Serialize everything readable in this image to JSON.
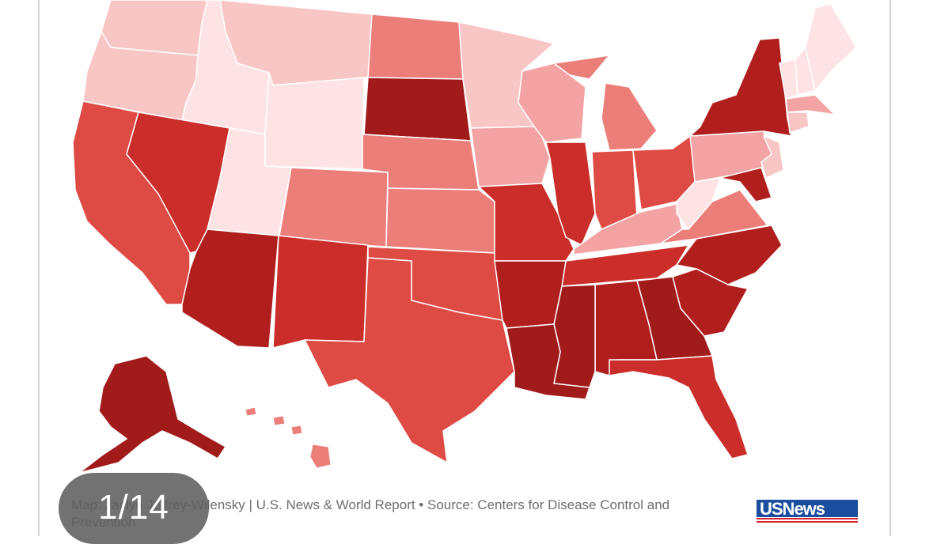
{
  "slideshow": {
    "counter": "1/14",
    "caption": "Map: Jaclyn Jeffrey-Wilensky | U.S. News & World Report • Source: Centers for Disease Control and Prevention",
    "logo_text": "USNews"
  },
  "map": {
    "palette": {
      "level1": "#fde3e3",
      "level2": "#f9c6c6",
      "level3": "#f3a3a3",
      "level4": "#ec7e7a",
      "level5": "#de4a44",
      "level6": "#cb2e2a",
      "level7": "#b01f1e",
      "level8": "#a11b1b"
    }
  }
}
